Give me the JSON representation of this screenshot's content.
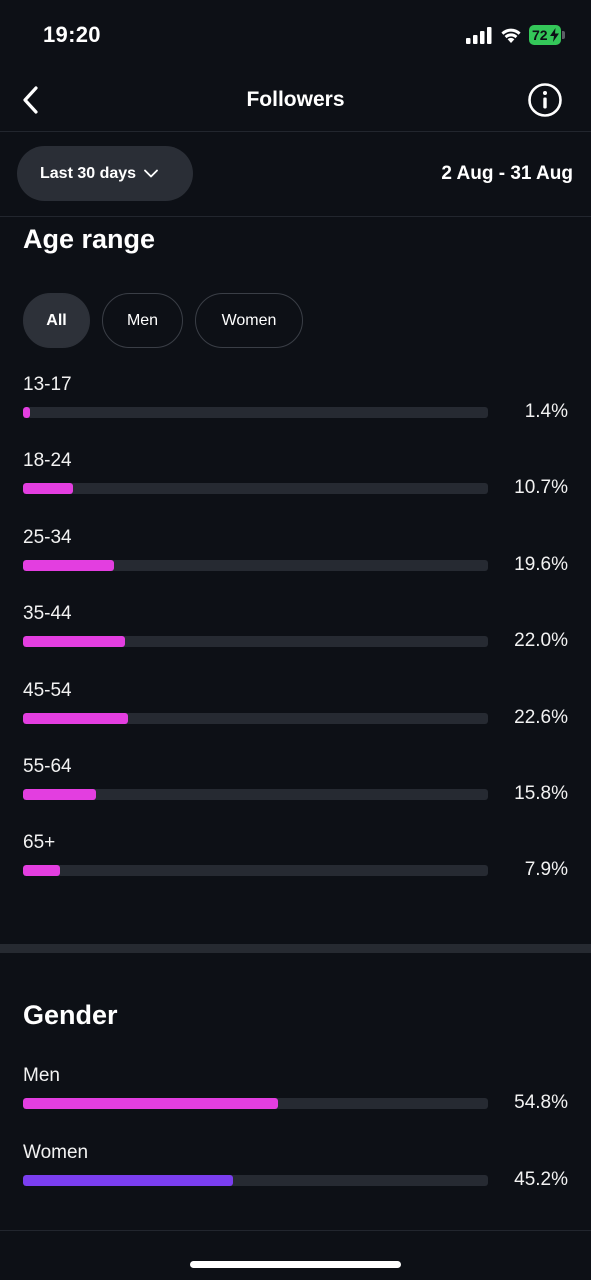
{
  "status_bar": {
    "time": "19:20",
    "battery": "72"
  },
  "header": {
    "title": "Followers"
  },
  "filter": {
    "range_label": "Last 30 days",
    "date_range": "2 Aug - 31 Aug"
  },
  "age_range": {
    "title": "Age range",
    "chips": [
      {
        "label": "All",
        "active": true
      },
      {
        "label": "Men",
        "active": false
      },
      {
        "label": "Women",
        "active": false
      }
    ],
    "rows": [
      {
        "label": "13-17",
        "value": "1.4%",
        "fraction": 0.014
      },
      {
        "label": "18-24",
        "value": "10.7%",
        "fraction": 0.107
      },
      {
        "label": "25-34",
        "value": "19.6%",
        "fraction": 0.196
      },
      {
        "label": "35-44",
        "value": "22.0%",
        "fraction": 0.22
      },
      {
        "label": "45-54",
        "value": "22.6%",
        "fraction": 0.226
      },
      {
        "label": "55-64",
        "value": "15.8%",
        "fraction": 0.158
      },
      {
        "label": "65+",
        "value": "7.9%",
        "fraction": 0.079
      }
    ]
  },
  "gender": {
    "title": "Gender",
    "rows": [
      {
        "label": "Men",
        "value": "54.8%",
        "fraction": 0.548
      },
      {
        "label": "Women",
        "value": "45.2%",
        "fraction": 0.452
      }
    ]
  },
  "colors": {
    "age_bar": "#e33ee0",
    "men_bar": "#e33ee0",
    "women_bar": "#7a3ef0",
    "track": "#262a32",
    "background": "#0d1016"
  }
}
